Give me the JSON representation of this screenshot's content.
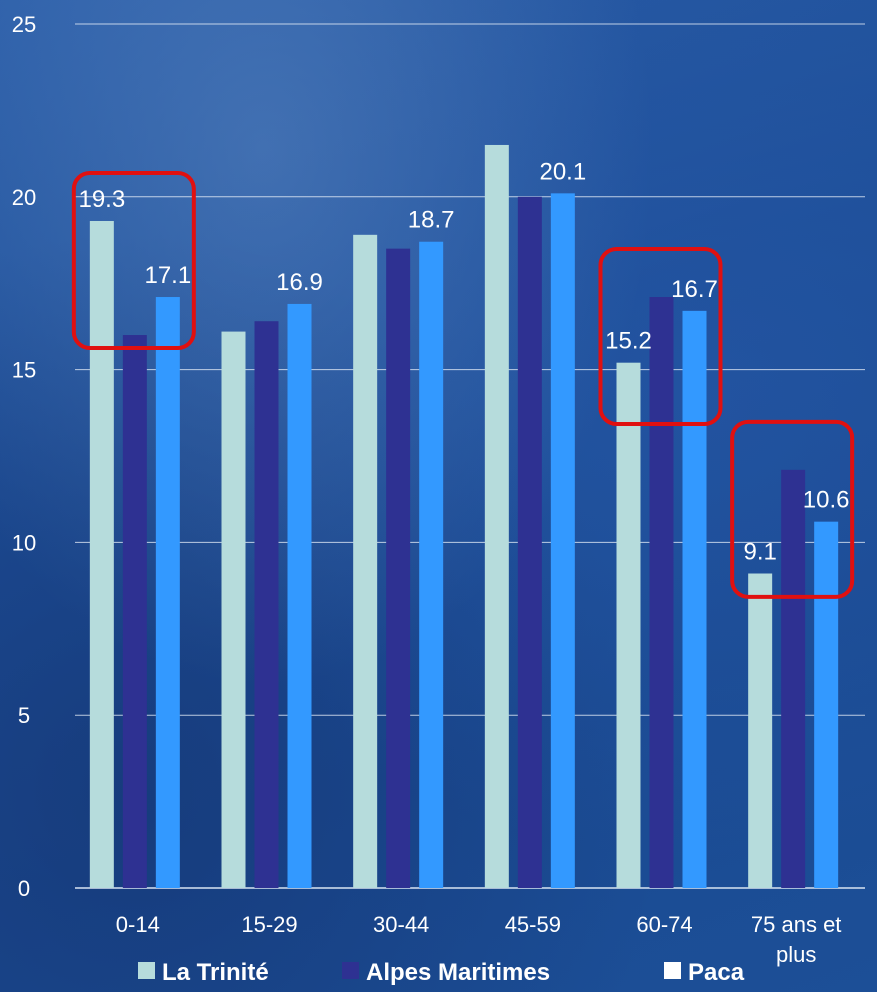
{
  "chart_data": {
    "type": "bar",
    "categories": [
      "0-14",
      "15-29",
      "30-44",
      "45-59",
      "60-74",
      "75 ans et plus"
    ],
    "category_lines": [
      [
        "0-14"
      ],
      [
        "15-29"
      ],
      [
        "30-44"
      ],
      [
        "45-59"
      ],
      [
        "60-74"
      ],
      [
        "75 ans et",
        "plus"
      ]
    ],
    "series": [
      {
        "name": "La Trinité",
        "color": "#b6dcdc",
        "values": [
          19.3,
          16.1,
          18.9,
          21.5,
          15.2,
          9.1
        ]
      },
      {
        "name": "Alpes Maritimes",
        "color": "#2e3192",
        "values": [
          16.0,
          16.4,
          18.5,
          20.0,
          17.1,
          12.1
        ]
      },
      {
        "name": "Paca",
        "color": "#3399ff",
        "values": [
          17.1,
          16.9,
          18.7,
          20.1,
          16.7,
          10.6
        ]
      }
    ],
    "data_labels": [
      {
        "category": 0,
        "series": 0,
        "text": "19.3"
      },
      {
        "category": 0,
        "series": 2,
        "text": "17.1"
      },
      {
        "category": 1,
        "series": 2,
        "text": "16.9"
      },
      {
        "category": 2,
        "series": 2,
        "text": "18.7"
      },
      {
        "category": 3,
        "series": 2,
        "text": "20.1"
      },
      {
        "category": 4,
        "series": 0,
        "text": "15.2"
      },
      {
        "category": 4,
        "series": 2,
        "text": "16.7"
      },
      {
        "category": 5,
        "series": 0,
        "text": "9.1"
      },
      {
        "category": 5,
        "series": 2,
        "text": "10.6"
      }
    ],
    "highlight_boxes": [
      {
        "categories": [
          0,
          0
        ]
      },
      {
        "categories": [
          4,
          4
        ]
      },
      {
        "categories": [
          5,
          5
        ]
      }
    ],
    "highlight_color": "#e01010",
    "yticks": [
      0,
      5,
      10,
      15,
      20,
      25
    ],
    "ylim": [
      0,
      25
    ],
    "grid": true,
    "legend_position": "bottom",
    "legend_swatch_colors": [
      "#b6dcdc",
      "#2e3192",
      "#ffffff"
    ]
  }
}
